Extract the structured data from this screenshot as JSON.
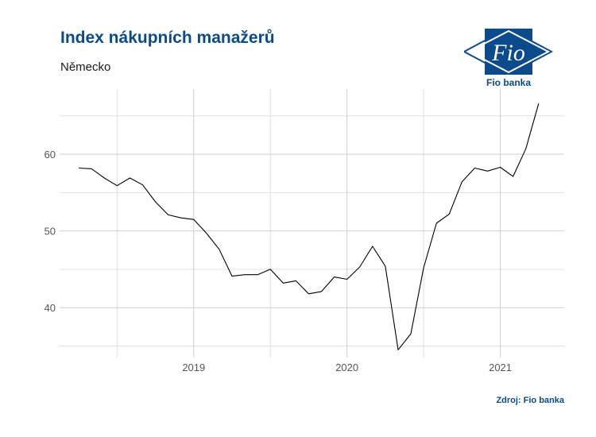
{
  "header": {
    "title": "Index nákupních manažerů",
    "subtitle": "Německo"
  },
  "logo": {
    "mark_text": "Fio",
    "label": "Fio banka",
    "color": "#0b4a8b"
  },
  "source": "Zdroj: Fio banka",
  "chart_data": {
    "type": "line",
    "title": "Index nákupních manažerů",
    "subtitle": "Německo",
    "xlabel": "",
    "ylabel": "",
    "x_tick_labels": [
      "2019",
      "2020",
      "2021"
    ],
    "y_ticks": [
      40,
      50,
      60
    ],
    "ylim": [
      33.5,
      68.5
    ],
    "grid": true,
    "line_color": "#000000",
    "series": [
      {
        "x": [
          "2018-04",
          "2018-05",
          "2018-06",
          "2018-07",
          "2018-08",
          "2018-09",
          "2018-10",
          "2018-11",
          "2018-12",
          "2019-01",
          "2019-02",
          "2019-03",
          "2019-04",
          "2019-05",
          "2019-06",
          "2019-07",
          "2019-08",
          "2019-09",
          "2019-10",
          "2019-11",
          "2019-12",
          "2020-01",
          "2020-02",
          "2020-03",
          "2020-04",
          "2020-05",
          "2020-06",
          "2020-07",
          "2020-08",
          "2020-09",
          "2020-10",
          "2020-11",
          "2020-12",
          "2021-01",
          "2021-02",
          "2021-03",
          "2021-04"
        ],
        "values": [
          58.2,
          58.1,
          56.9,
          55.9,
          56.9,
          56.0,
          53.8,
          52.1,
          51.7,
          51.5,
          49.7,
          47.6,
          44.1,
          44.3,
          44.3,
          45.0,
          43.2,
          43.5,
          41.8,
          42.1,
          44.0,
          43.7,
          45.3,
          48.0,
          45.4,
          34.5,
          36.6,
          45.2,
          51.0,
          52.2,
          56.4,
          58.2,
          57.8,
          58.3,
          57.1,
          60.7,
          66.6
        ]
      }
    ]
  }
}
